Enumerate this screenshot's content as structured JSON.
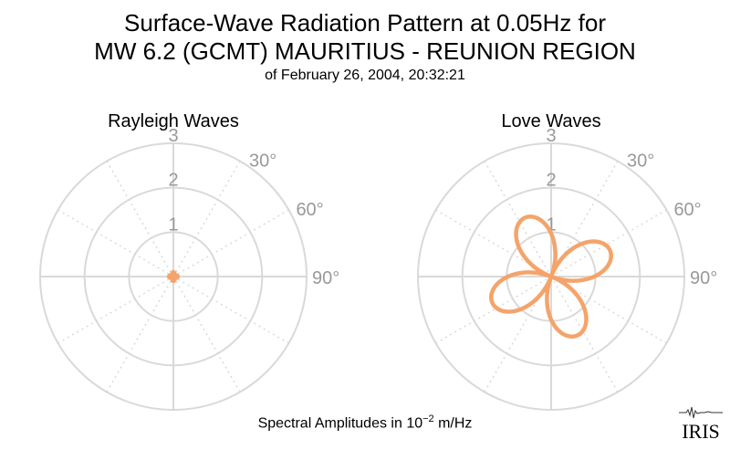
{
  "header": {
    "title_line1": "Surface-Wave Radiation Pattern at 0.05Hz for",
    "title_line2": "MW 6.2 (GCMT) MAURITIUS - REUNION REGION",
    "subtitle": "of February 26, 2004, 20:32:21"
  },
  "footer": {
    "label_prefix": "Spectral Amplitudes in 10",
    "label_exponent": "−2",
    "label_suffix": " m/Hz"
  },
  "logo_text": "IRIS",
  "colors": {
    "pattern": "#f4a46a",
    "grid": "#d9d9d9",
    "tick_text": "#999999"
  },
  "chart_data": [
    {
      "type": "polar",
      "title": "Rayleigh Waves",
      "radial_ticks": [
        1,
        2,
        3
      ],
      "rlim": [
        0,
        3
      ],
      "angle_ticks": [
        "30°",
        "60°",
        "90°"
      ],
      "grid": true,
      "series": [
        {
          "pattern": "4-lobe",
          "max_amplitude": 0.1,
          "lobe_axes_deg": [
            0,
            90,
            180,
            270
          ]
        }
      ]
    },
    {
      "type": "polar",
      "title": "Love Waves",
      "radial_ticks": [
        1,
        2,
        3
      ],
      "rlim": [
        0,
        3
      ],
      "angle_ticks": [
        "30°",
        "60°",
        "90°"
      ],
      "grid": true,
      "series": [
        {
          "pattern": "4-lobe",
          "max_amplitude": 1.45,
          "lobe_axes_deg": [
            -24,
            66,
            156,
            246
          ]
        }
      ]
    }
  ]
}
